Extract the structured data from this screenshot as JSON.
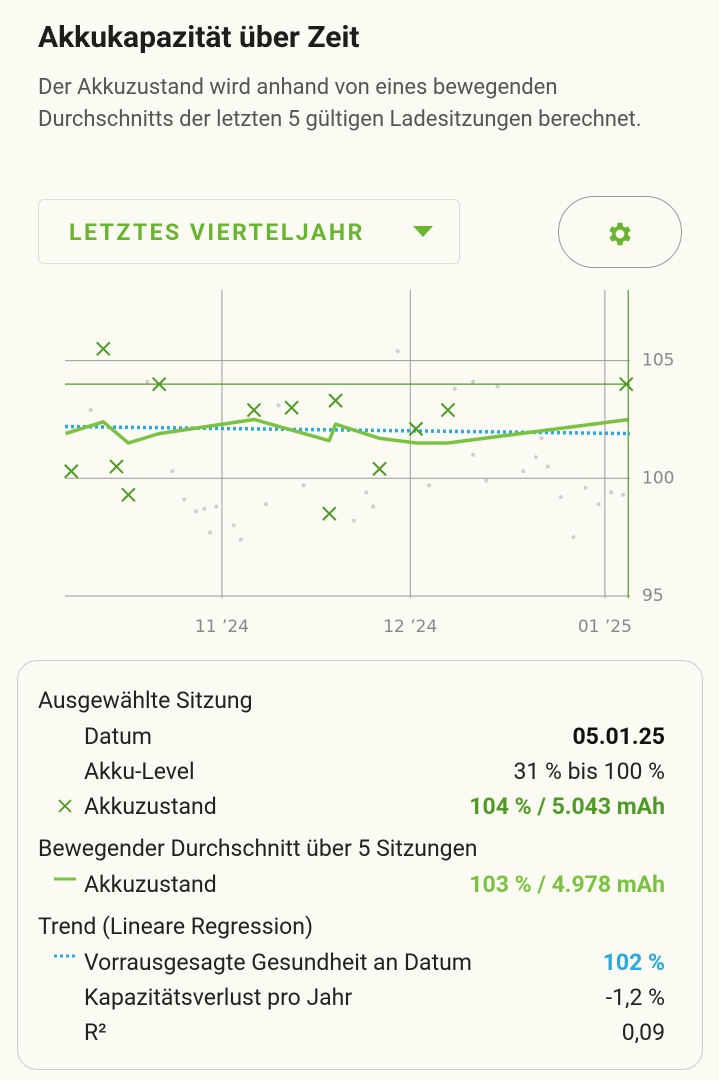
{
  "header": {
    "title": "Akkukapazität über Zeit",
    "description": "Der Akkuzustand wird anhand von eines bewegenden Durchschnitts der letzten 5 gültigen Ladesitzungen berechnet."
  },
  "controls": {
    "period": "LETZTES VIERTELJAHR"
  },
  "chart_data": {
    "type": "line",
    "xlim": [
      6,
      96
    ],
    "ylim": [
      95,
      108
    ],
    "xticks": [
      {
        "value": 31,
        "label": "11 ’24"
      },
      {
        "value": 61,
        "label": "12 ’24"
      },
      {
        "value": 92,
        "label": "01 ’25"
      }
    ],
    "yticks": [
      95,
      100,
      105
    ],
    "grid": true,
    "selected": 12,
    "series": [
      {
        "style": "dot",
        "color": "#cfcfcf",
        "x": [
          10.1,
          19.1,
          23.1,
          25,
          26.9,
          28.2,
          29.1,
          30.1,
          32.9,
          34,
          38,
          40,
          44,
          52,
          54,
          55.1,
          59,
          64,
          68.1,
          71,
          71,
          73.1,
          74.9,
          79,
          81,
          81.9,
          82.9,
          85,
          87,
          88.9,
          91,
          93,
          94.9
        ],
        "values": [
          102.9,
          104.1,
          100.3,
          99.1,
          98.6,
          98.7,
          97.7,
          98.8,
          98,
          97.4,
          98.9,
          103.1,
          99.7,
          98.2,
          99.4,
          98.8,
          105.4,
          99.7,
          103.8,
          104.1,
          101,
          99.9,
          103.9,
          100.3,
          100.9,
          101.7,
          100.5,
          99.2,
          97.5,
          99.6,
          98.9,
          99.4,
          99.3
        ]
      },
      {
        "style": "dotted",
        "color": "#2aa9e0",
        "x": [
          6,
          96
        ],
        "values": [
          102.2,
          101.9
        ]
      },
      {
        "style": "line",
        "color": "#7cc242",
        "x": [
          6.1,
          12.1,
          16.1,
          21,
          36.1,
          48.1,
          49.1,
          56.1,
          62,
          67,
          95.8
        ],
        "values": [
          101.9,
          102.4,
          101.5,
          101.9,
          102.5,
          101.6,
          102.3,
          101.7,
          101.5,
          101.5,
          102.5
        ]
      },
      {
        "style": "x",
        "color": "#4f9a26",
        "x": [
          7,
          12.1,
          14.2,
          16.1,
          21,
          36.1,
          42.1,
          48.1,
          49.1,
          56.1,
          61.9,
          67,
          95.4
        ],
        "values": [
          100.3,
          105.5,
          100.5,
          99.3,
          104,
          102.9,
          103,
          98.5,
          103.3,
          100.4,
          102.1,
          102.9,
          104
        ]
      }
    ]
  },
  "details": {
    "selected": {
      "heading": "Ausgewählte Sitzung",
      "rows": [
        [
          "Datum",
          "05.01.25"
        ],
        [
          "Akku-Level",
          "31 % bis 100 %"
        ],
        [
          "Akkuzustand",
          "104 % / 5.043 mAh"
        ]
      ]
    },
    "average": {
      "heading": "Bewegender Durchschnitt über 5 Sitzungen",
      "rows": [
        [
          "Akkuzustand",
          "103 % / 4.978 mAh"
        ]
      ]
    },
    "trend": {
      "heading": "Trend (Lineare Regression)",
      "rows": [
        [
          "Vorrausgesagte Gesundheit an Datum",
          "102 %"
        ],
        [
          "Kapazitätsverlust pro Jahr",
          "-1,2 %"
        ],
        [
          "R²",
          "0,09"
        ]
      ]
    }
  }
}
